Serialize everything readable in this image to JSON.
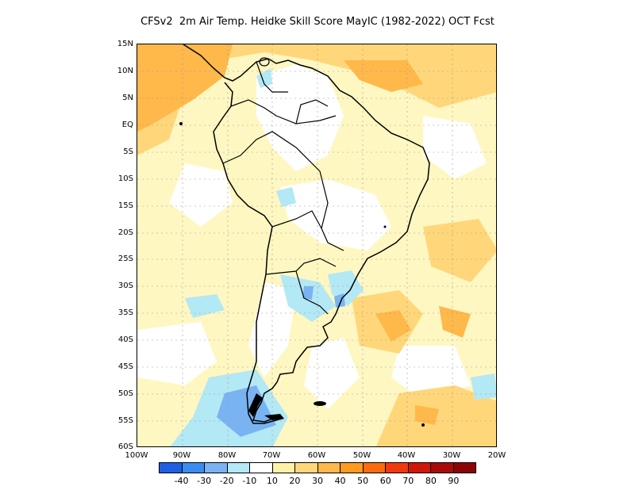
{
  "title": "CFSv2  2m Air Temp. Heidke Skill Score MayIC (1982-2022) OCT Fcst",
  "map": {
    "lat_labels": [
      "15N",
      "10N",
      "5N",
      "EQ",
      "5S",
      "10S",
      "15S",
      "20S",
      "25S",
      "30S",
      "35S",
      "40S",
      "45S",
      "50S",
      "55S",
      "60S"
    ],
    "lon_labels": [
      "100W",
      "90W",
      "80W",
      "70W",
      "60W",
      "50W",
      "40W",
      "30W",
      "20W"
    ],
    "region": "South America",
    "lat_range": [
      -60,
      15
    ],
    "lon_range": [
      -100,
      -20
    ]
  },
  "colorbar": {
    "labels": [
      "-40",
      "-30",
      "-20",
      "-10",
      "10",
      "20",
      "30",
      "40",
      "50",
      "60",
      "70",
      "80",
      "90"
    ],
    "colors": [
      "#1f5fe6",
      "#3a8cf0",
      "#7ab3f2",
      "#b3e8f5",
      "#ffffff",
      "#fff2a8",
      "#ffd77a",
      "#ffb84a",
      "#ff9a1e",
      "#ff6a10",
      "#f03a0c",
      "#d01808",
      "#a80a0a",
      "#8c0505"
    ]
  }
}
